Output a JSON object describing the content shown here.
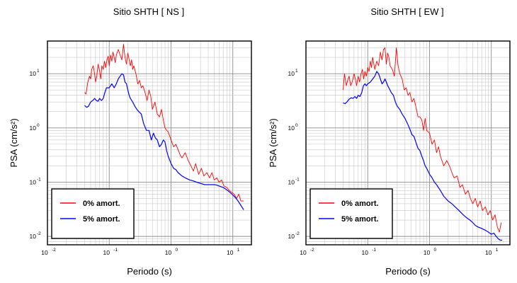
{
  "chart_data": [
    {
      "type": "line",
      "title": "Sitio SHTH [ NS ]",
      "xlabel": "Periodo (s)",
      "ylabel": "PSA (cm/s²)",
      "xscale": "log",
      "yscale": "log",
      "xlim": [
        0.01,
        20
      ],
      "ylim": [
        0.007,
        40
      ],
      "grid": true,
      "legend_position": "bottom-left",
      "x_ticks": [
        {
          "value": 0.01,
          "base": "10",
          "exp": "-2"
        },
        {
          "value": 0.1,
          "base": "10",
          "exp": "-1"
        },
        {
          "value": 1,
          "base": "10",
          "exp": "0"
        },
        {
          "value": 10,
          "base": "10",
          "exp": "1"
        }
      ],
      "y_ticks": [
        {
          "value": 0.01,
          "base": "10",
          "exp": "-2"
        },
        {
          "value": 0.1,
          "base": "10",
          "exp": "-1"
        },
        {
          "value": 1,
          "base": "10",
          "exp": "0"
        },
        {
          "value": 10,
          "base": "10",
          "exp": "1"
        }
      ],
      "series": [
        {
          "name": "0% amort.",
          "color": "#ff0000",
          "x": [
            0.04,
            0.042,
            0.045,
            0.048,
            0.05,
            0.052,
            0.055,
            0.058,
            0.06,
            0.063,
            0.066,
            0.07,
            0.073,
            0.076,
            0.08,
            0.084,
            0.088,
            0.092,
            0.096,
            0.1,
            0.105,
            0.11,
            0.115,
            0.12,
            0.125,
            0.13,
            0.14,
            0.15,
            0.16,
            0.17,
            0.18,
            0.19,
            0.2,
            0.21,
            0.22,
            0.23,
            0.24,
            0.25,
            0.27,
            0.29,
            0.31,
            0.33,
            0.35,
            0.38,
            0.41,
            0.44,
            0.47,
            0.5,
            0.55,
            0.6,
            0.65,
            0.7,
            0.75,
            0.8,
            0.85,
            0.9,
            1.0,
            1.1,
            1.2,
            1.3,
            1.4,
            1.5,
            1.7,
            1.9,
            2.1,
            2.3,
            2.5,
            2.8,
            3.1,
            3.4,
            3.8,
            4.2,
            4.6,
            5.0,
            5.5,
            6.0,
            6.6,
            7.2,
            8.0,
            8.8,
            9.6,
            10.5,
            11.5,
            12.5,
            13.5,
            15.0
          ],
          "y": [
            4.5,
            4.2,
            7,
            9,
            8,
            12,
            14,
            10,
            7,
            9,
            15,
            11,
            8,
            14,
            12,
            17,
            13,
            18,
            21,
            14,
            22,
            17,
            25,
            20,
            16,
            22,
            28,
            22,
            18,
            35,
            20,
            15,
            24,
            18,
            14,
            18,
            12,
            14,
            10,
            6.5,
            7.5,
            5.5,
            6,
            4.5,
            3.2,
            5,
            3.8,
            2.2,
            3,
            1.8,
            1.6,
            2.2,
            1.4,
            1.0,
            0.9,
            0.85,
            0.6,
            0.45,
            0.5,
            0.4,
            0.32,
            0.28,
            0.35,
            0.25,
            0.2,
            0.16,
            0.22,
            0.14,
            0.18,
            0.13,
            0.15,
            0.12,
            0.15,
            0.11,
            0.12,
            0.1,
            0.11,
            0.085,
            0.08,
            0.07,
            0.065,
            0.06,
            0.05,
            0.06,
            0.045,
            0.045
          ]
        },
        {
          "name": "5% amort.",
          "color": "#0000ff",
          "x": [
            0.04,
            0.043,
            0.046,
            0.05,
            0.054,
            0.058,
            0.062,
            0.066,
            0.07,
            0.075,
            0.08,
            0.085,
            0.09,
            0.095,
            0.1,
            0.11,
            0.12,
            0.13,
            0.14,
            0.15,
            0.16,
            0.17,
            0.18,
            0.19,
            0.2,
            0.21,
            0.22,
            0.24,
            0.26,
            0.28,
            0.3,
            0.33,
            0.36,
            0.4,
            0.44,
            0.48,
            0.52,
            0.56,
            0.6,
            0.65,
            0.7,
            0.75,
            0.8,
            0.85,
            0.9,
            1.0,
            1.1,
            1.2,
            1.3,
            1.5,
            1.7,
            2.0,
            2.3,
            2.6,
            3.0,
            3.5,
            4.0,
            4.5,
            5.0,
            5.5,
            6.0,
            7.0,
            8.0,
            9.0,
            10.0,
            11.0,
            12.0,
            13.0,
            14.0,
            15.0
          ],
          "y": [
            2.6,
            2.4,
            2.5,
            3.0,
            3.2,
            3.5,
            3.2,
            3.1,
            3.5,
            3.2,
            3.5,
            4.5,
            5.5,
            5.5,
            5.5,
            6.5,
            5.5,
            6.5,
            8.0,
            9.0,
            10.0,
            9.5,
            7.0,
            6.5,
            5.0,
            4.0,
            3.5,
            3.0,
            2.5,
            2.2,
            2.0,
            1.8,
            1.2,
            0.9,
            0.9,
            0.6,
            0.8,
            0.65,
            0.6,
            0.45,
            0.5,
            0.6,
            0.55,
            0.38,
            0.3,
            0.22,
            0.18,
            0.17,
            0.15,
            0.13,
            0.12,
            0.11,
            0.105,
            0.1,
            0.095,
            0.09,
            0.09,
            0.09,
            0.09,
            0.088,
            0.085,
            0.08,
            0.072,
            0.065,
            0.058,
            0.052,
            0.046,
            0.04,
            0.035,
            0.031
          ]
        }
      ]
    },
    {
      "type": "line",
      "title": "Sitio SHTH [ EW ]",
      "xlabel": "Periodo (s)",
      "ylabel": "PSA (cm/s²)",
      "xscale": "log",
      "yscale": "log",
      "xlim": [
        0.01,
        20
      ],
      "ylim": [
        0.007,
        40
      ],
      "grid": true,
      "legend_position": "bottom-left",
      "x_ticks": [
        {
          "value": 0.01,
          "base": "10",
          "exp": "-2"
        },
        {
          "value": 0.1,
          "base": "10",
          "exp": "-1"
        },
        {
          "value": 1,
          "base": "10",
          "exp": "0"
        },
        {
          "value": 10,
          "base": "10",
          "exp": "1"
        }
      ],
      "y_ticks": [
        {
          "value": 0.01,
          "base": "10",
          "exp": "-2"
        },
        {
          "value": 0.1,
          "base": "10",
          "exp": "-1"
        },
        {
          "value": 1,
          "base": "10",
          "exp": "0"
        },
        {
          "value": 10,
          "base": "10",
          "exp": "1"
        }
      ],
      "series": [
        {
          "name": "0% amort.",
          "color": "#ff0000",
          "x": [
            0.04,
            0.042,
            0.045,
            0.048,
            0.05,
            0.053,
            0.056,
            0.06,
            0.063,
            0.066,
            0.07,
            0.074,
            0.078,
            0.082,
            0.086,
            0.09,
            0.095,
            0.1,
            0.105,
            0.11,
            0.115,
            0.12,
            0.13,
            0.14,
            0.15,
            0.16,
            0.17,
            0.18,
            0.19,
            0.2,
            0.21,
            0.22,
            0.23,
            0.25,
            0.27,
            0.29,
            0.31,
            0.33,
            0.36,
            0.39,
            0.42,
            0.45,
            0.48,
            0.52,
            0.56,
            0.6,
            0.65,
            0.7,
            0.75,
            0.8,
            0.85,
            0.9,
            1.0,
            1.1,
            1.2,
            1.3,
            1.4,
            1.5,
            1.7,
            1.9,
            2.1,
            2.3,
            2.5,
            2.8,
            3.1,
            3.4,
            3.8,
            4.2,
            4.6,
            5.0,
            5.5,
            6.0,
            6.6,
            7.2,
            8.0,
            8.8,
            9.6,
            10.5,
            11.5,
            12.5,
            13.5,
            14.5
          ],
          "y": [
            5,
            10,
            6,
            8,
            9,
            6,
            7,
            10,
            8,
            6,
            9,
            7,
            10,
            12,
            8,
            11,
            9,
            13,
            11,
            17,
            13,
            20,
            12,
            17,
            14,
            25,
            18,
            28,
            30,
            15,
            24,
            20,
            14,
            12,
            9,
            30,
            14,
            10,
            8,
            5,
            5.5,
            4,
            4.5,
            3,
            3.5,
            2.5,
            1.6,
            1.6,
            1.4,
            0.9,
            1.5,
            0.9,
            0.8,
            0.5,
            0.6,
            0.35,
            0.45,
            0.3,
            0.2,
            0.25,
            0.2,
            0.15,
            0.12,
            0.13,
            0.08,
            0.09,
            0.06,
            0.07,
            0.05,
            0.04,
            0.05,
            0.035,
            0.045,
            0.03,
            0.035,
            0.025,
            0.03,
            0.02,
            0.025,
            0.015,
            0.012,
            0.018
          ]
        },
        {
          "name": "5% amort.",
          "color": "#0000ff",
          "x": [
            0.04,
            0.043,
            0.046,
            0.05,
            0.054,
            0.058,
            0.062,
            0.066,
            0.07,
            0.075,
            0.08,
            0.085,
            0.09,
            0.095,
            0.1,
            0.11,
            0.12,
            0.13,
            0.14,
            0.15,
            0.16,
            0.17,
            0.18,
            0.19,
            0.2,
            0.21,
            0.22,
            0.24,
            0.26,
            0.28,
            0.3,
            0.33,
            0.36,
            0.4,
            0.44,
            0.48,
            0.52,
            0.56,
            0.6,
            0.65,
            0.7,
            0.75,
            0.8,
            0.85,
            0.9,
            1.0,
            1.1,
            1.2,
            1.3,
            1.5,
            1.7,
            2.0,
            2.3,
            2.6,
            3.0,
            3.5,
            4.0,
            4.5,
            5.0,
            5.5,
            6.0,
            7.0,
            8.0,
            9.0,
            10.0,
            11.0,
            12.0,
            13.0,
            14.0,
            15.0
          ],
          "y": [
            2.9,
            2.8,
            3.0,
            3.4,
            3.6,
            3.5,
            3.8,
            3.5,
            4.0,
            3.8,
            4.5,
            6.0,
            6.5,
            6.0,
            6.5,
            7.0,
            8.0,
            9.0,
            11.0,
            10.0,
            8.0,
            6.5,
            7.0,
            8.0,
            7.0,
            6.0,
            5.5,
            4.5,
            4.0,
            3.0,
            2.5,
            2.2,
            1.8,
            1.5,
            1.2,
            0.95,
            0.75,
            0.7,
            0.55,
            0.42,
            0.38,
            0.3,
            0.25,
            0.2,
            0.18,
            0.14,
            0.12,
            0.1,
            0.09,
            0.07,
            0.055,
            0.045,
            0.04,
            0.035,
            0.03,
            0.025,
            0.022,
            0.02,
            0.018,
            0.016,
            0.015,
            0.014,
            0.013,
            0.012,
            0.011,
            0.0115,
            0.01,
            0.009,
            0.0085,
            0.0085
          ]
        }
      ]
    }
  ]
}
